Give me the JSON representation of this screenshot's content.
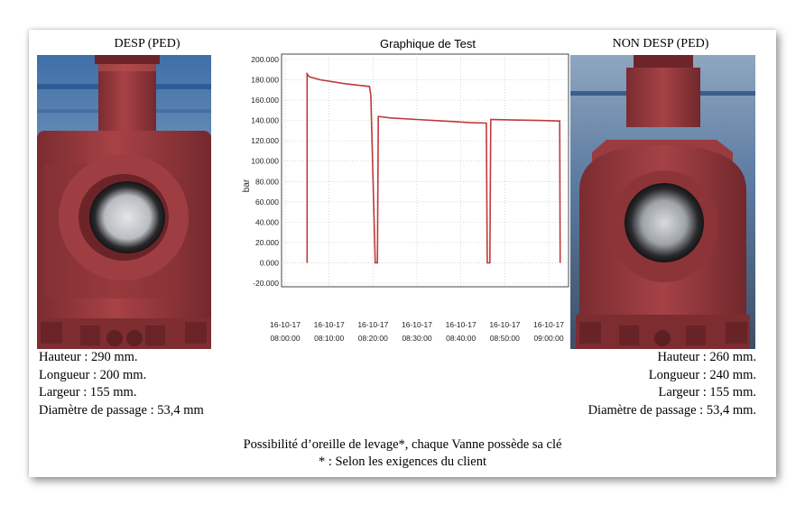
{
  "left": {
    "title": "DESP (PED)",
    "specs": [
      "Hauteur : 290 mm.",
      "Longueur : 200 mm.",
      "Largeur : 155 mm.",
      "Diamètre de passage : 53,4 mm"
    ]
  },
  "right": {
    "title": "NON DESP (PED)",
    "specs": [
      "Hauteur : 260 mm.",
      "Longueur : 240 mm.",
      "Largeur : 155 mm.",
      "Diamètre de passage : 53,4 mm."
    ]
  },
  "notes": {
    "line1": "Possibilité d’oreille de levage*, chaque Vanne possède sa clé",
    "line2": "* : Selon les exigences du client"
  },
  "colors": {
    "valve_body": "#9a3a3e",
    "series": "#c0393b",
    "grid": "#b8c8b8"
  },
  "chart_data": {
    "type": "line",
    "title": "Graphique de Test",
    "ylabel": "bar",
    "xlabel": "",
    "ylim": [
      -20,
      200
    ],
    "y_ticks": [
      "-20.000",
      "0.000",
      "20.000",
      "40.000",
      "60.000",
      "80.000",
      "100.000",
      "120.000",
      "140.000",
      "160.000",
      "180.000",
      "200.000"
    ],
    "x_range_minutes": [
      0,
      60
    ],
    "x_ticks": [
      {
        "date": "16-10-17",
        "time": "08:00:00"
      },
      {
        "date": "16-10-17",
        "time": "08:10:00"
      },
      {
        "date": "16-10-17",
        "time": "08:20:00"
      },
      {
        "date": "16-10-17",
        "time": "08:30:00"
      },
      {
        "date": "16-10-17",
        "time": "08:40:00"
      },
      {
        "date": "16-10-17",
        "time": "08:50:00"
      },
      {
        "date": "16-10-17",
        "time": "09:00:00"
      }
    ],
    "grid": true,
    "series": [
      {
        "points": [
          [
            5.0,
            0
          ],
          [
            5.0,
            186
          ],
          [
            5.5,
            183
          ],
          [
            8,
            180
          ],
          [
            11,
            178
          ],
          [
            14,
            176
          ],
          [
            17,
            174.5
          ],
          [
            19.2,
            173.5
          ],
          [
            19.5,
            165
          ],
          [
            20.5,
            0
          ],
          [
            21.0,
            0
          ],
          [
            21.2,
            144
          ],
          [
            24,
            142.5
          ],
          [
            30,
            141
          ],
          [
            36,
            139.5
          ],
          [
            42,
            138
          ],
          [
            45.8,
            137.5
          ],
          [
            46.0,
            0
          ],
          [
            46.6,
            0
          ],
          [
            46.8,
            141
          ],
          [
            52,
            140.5
          ],
          [
            58,
            140
          ],
          [
            62.5,
            139.5
          ],
          [
            62.6,
            0
          ]
        ]
      }
    ]
  }
}
